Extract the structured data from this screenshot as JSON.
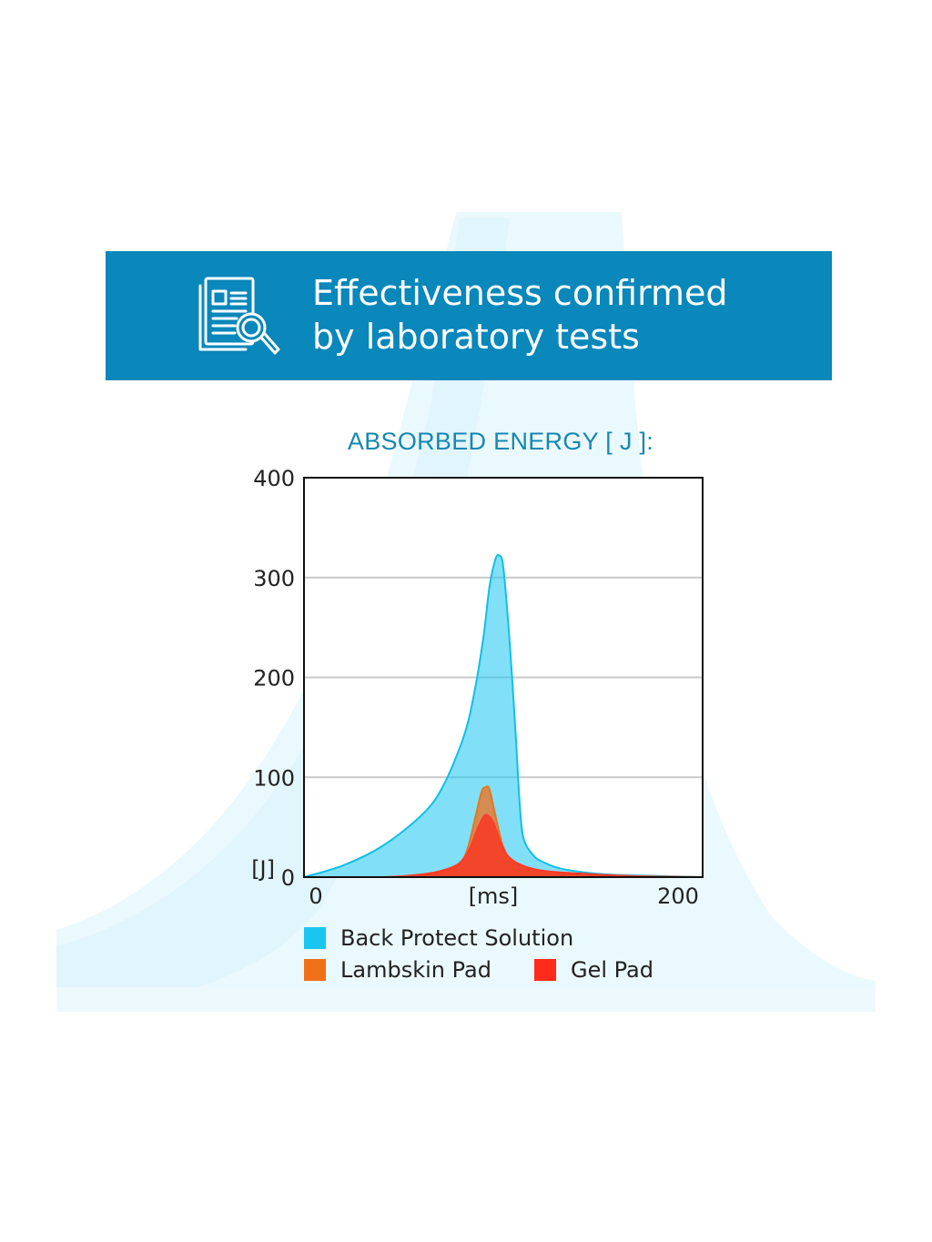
{
  "header": {
    "title_line1": "Effectiveness confirmed",
    "title_line2": "by laboratory tests",
    "icon": "document-magnifier-icon"
  },
  "colors": {
    "banner": "#0a87bb",
    "title": "#1787b3",
    "back_protect": "#1ac6f0",
    "lambskin": "#f07018",
    "gel": "#ff2a1a"
  },
  "chart_data": {
    "type": "area",
    "title": "ABSORBED ENERGY [ J ]:",
    "xlabel": "[ms]",
    "ylabel": "[J]",
    "xlim": [
      0,
      200
    ],
    "ylim": [
      0,
      400
    ],
    "x_ticks": [
      "0",
      "200"
    ],
    "y_ticks": [
      "0",
      "100",
      "200",
      "300",
      "400"
    ],
    "grid": true,
    "legend_position": "bottom",
    "series": [
      {
        "name": "Back Protect Solution",
        "x": [
          0,
          20,
          40,
          60,
          70,
          80,
          85,
          90,
          93,
          96,
          98,
          100,
          103,
          106,
          108,
          110,
          115,
          120,
          130,
          150,
          180,
          200
        ],
        "values": [
          0,
          12,
          32,
          64,
          92,
          140,
          180,
          240,
          290,
          318,
          322,
          310,
          240,
          150,
          80,
          40,
          22,
          15,
          8,
          3,
          1,
          0
        ]
      },
      {
        "name": "Lambskin Pad",
        "x": [
          0,
          40,
          60,
          70,
          78,
          82,
          86,
          89,
          91,
          93,
          96,
          100,
          105,
          115,
          130,
          160,
          200
        ],
        "values": [
          0,
          0,
          2,
          6,
          14,
          28,
          60,
          85,
          90,
          88,
          62,
          30,
          16,
          8,
          4,
          1,
          0
        ]
      },
      {
        "name": "Gel Pad",
        "x": [
          0,
          40,
          60,
          70,
          78,
          83,
          87,
          90,
          92,
          95,
          98,
          102,
          108,
          118,
          135,
          165,
          200
        ],
        "values": [
          0,
          0,
          3,
          7,
          14,
          28,
          48,
          60,
          62,
          55,
          38,
          22,
          13,
          7,
          4,
          1,
          0
        ]
      }
    ]
  }
}
